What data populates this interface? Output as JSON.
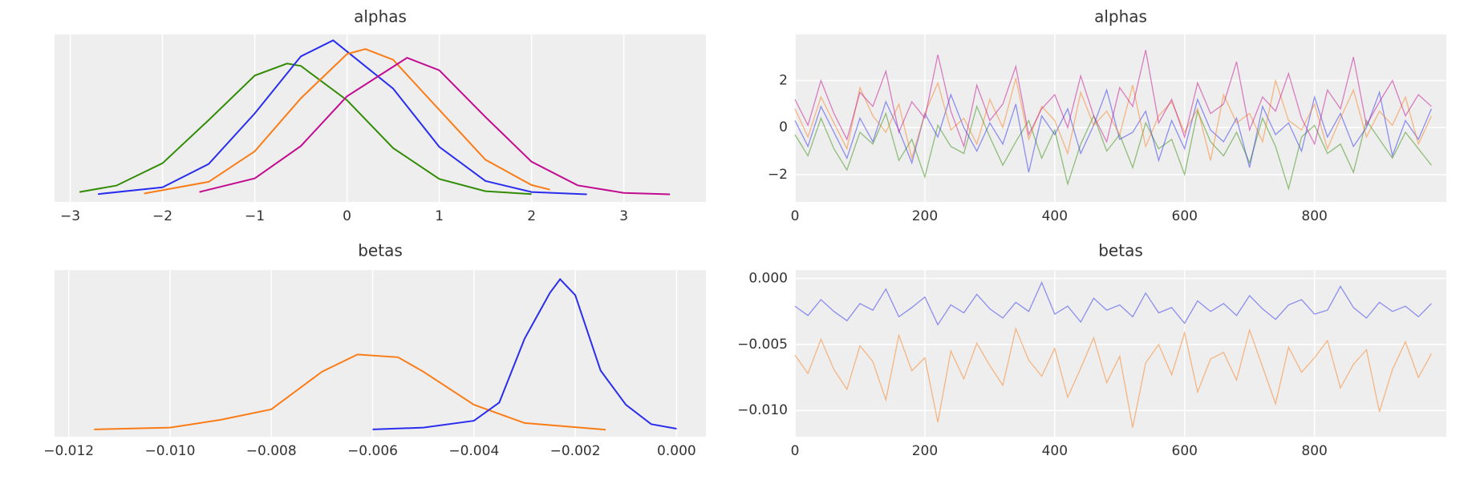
{
  "chart_data": [
    {
      "type": "kde",
      "title": "alphas",
      "grid": true,
      "xlim": [
        -3.17,
        3.89
      ],
      "ylim": [
        -0.025,
        0.55
      ],
      "xticks": [
        {
          "value": -3,
          "label": "−3"
        },
        {
          "value": -2,
          "label": "−2"
        },
        {
          "value": -1,
          "label": "−1"
        },
        0,
        1,
        2,
        3
      ],
      "series": [
        {
          "color": "#328c06",
          "x": [
            -2.9,
            -2.5,
            -2,
            -1.5,
            -1,
            -0.65,
            -0.5,
            0,
            0.5,
            1,
            1.5,
            2
          ],
          "values": [
            0.009,
            0.031,
            0.108,
            0.256,
            0.409,
            0.45,
            0.442,
            0.324,
            0.16,
            0.054,
            0.012,
            0.002
          ]
        },
        {
          "color": "#2a2eec",
          "x": [
            -2.7,
            -2,
            -1.5,
            -1,
            -0.5,
            -0.15,
            0.5,
            1,
            1.5,
            2,
            2.6
          ],
          "values": [
            0.002,
            0.025,
            0.105,
            0.279,
            0.475,
            0.53,
            0.364,
            0.164,
            0.047,
            0.009,
            0.001
          ]
        },
        {
          "color": "#fa7c17",
          "x": [
            -2.2,
            -1.5,
            -1,
            -0.5,
            0,
            0.2,
            0.5,
            1,
            1.5,
            2,
            2.2
          ],
          "values": [
            0.004,
            0.044,
            0.149,
            0.331,
            0.483,
            0.5,
            0.463,
            0.291,
            0.12,
            0.033,
            0.017
          ]
        },
        {
          "color": "#c10c90",
          "x": [
            -1.6,
            -1,
            -0.5,
            0,
            0.65,
            1,
            1.5,
            2,
            2.5,
            3,
            3.5
          ],
          "values": [
            0.009,
            0.056,
            0.167,
            0.338,
            0.47,
            0.427,
            0.267,
            0.113,
            0.032,
            0.006,
            0.001
          ]
        }
      ]
    },
    {
      "type": "trace",
      "title": "alphas",
      "grid": true,
      "xlim": [
        0,
        1003
      ],
      "ylim": [
        -3.16,
        3.96
      ],
      "xticks": [
        0,
        200,
        400,
        600,
        800
      ],
      "yticks": [
        {
          "value": -2,
          "label": "−2"
        },
        0,
        2
      ],
      "x": [
        0,
        20,
        40,
        60,
        80,
        100,
        120,
        140,
        160,
        180,
        200,
        220,
        240,
        260,
        280,
        300,
        320,
        340,
        360,
        380,
        400,
        420,
        440,
        460,
        480,
        500,
        520,
        540,
        560,
        580,
        600,
        620,
        640,
        660,
        680,
        700,
        720,
        740,
        760,
        780,
        800,
        820,
        840,
        860,
        880,
        900,
        920,
        940,
        960,
        980
      ],
      "series": [
        {
          "color": "#328c06",
          "values": [
            -0.3,
            -1.2,
            0.4,
            -0.9,
            -1.8,
            -0.2,
            -0.7,
            0.6,
            -1.4,
            -0.5,
            -2.1,
            0.1,
            -0.8,
            -1.1,
            0.9,
            -0.4,
            -1.6,
            -0.6,
            0.3,
            -1.3,
            -0.1,
            -2.4,
            -0.7,
            0.5,
            -1.0,
            -0.3,
            -1.7,
            0.2,
            -0.9,
            -0.5,
            -2.0,
            0.7,
            -0.6,
            -1.2,
            -0.2,
            -1.5,
            0.4,
            -0.8,
            -2.6,
            -0.4,
            0.1,
            -1.1,
            -0.7,
            -1.9,
            0.3,
            -0.5,
            -1.3,
            -0.2,
            -0.9,
            -1.6
          ]
        },
        {
          "color": "#2a2eec",
          "values": [
            0.3,
            -0.8,
            0.9,
            -0.2,
            -1.3,
            0.4,
            -0.6,
            1.1,
            -0.1,
            -1.5,
            0.6,
            -0.4,
            1.4,
            0.0,
            -1.0,
            0.2,
            -0.7,
            1.0,
            -1.9,
            0.5,
            -0.3,
            0.8,
            -1.1,
            0.1,
            1.6,
            -0.5,
            -0.2,
            0.7,
            -1.4,
            0.3,
            -0.9,
            1.2,
            -0.1,
            -0.6,
            0.4,
            -1.7,
            0.9,
            -0.3,
            0.2,
            -1.0,
            1.3,
            -0.4,
            0.6,
            -0.8,
            0.0,
            1.5,
            -1.2,
            0.3,
            -0.5,
            0.8
          ]
        },
        {
          "color": "#fa7c17",
          "values": [
            0.8,
            -0.4,
            1.3,
            0.2,
            -0.9,
            1.7,
            0.5,
            -0.2,
            1.0,
            -1.3,
            0.6,
            1.9,
            -0.1,
            0.4,
            -0.7,
            1.2,
            0.0,
            2.1,
            -0.5,
            0.9,
            0.3,
            -1.1,
            1.5,
            0.1,
            0.7,
            -0.3,
            1.8,
            -0.8,
            0.5,
            1.1,
            -0.2,
            0.8,
            -1.4,
            1.4,
            0.2,
            0.6,
            -0.6,
            2.0,
            0.3,
            -0.1,
            1.0,
            -0.9,
            0.4,
            1.6,
            -0.4,
            0.7,
            0.1,
            1.3,
            -0.7,
            0.5
          ]
        },
        {
          "color": "#c10c90",
          "values": [
            1.2,
            0.1,
            2.0,
            0.6,
            -0.5,
            1.5,
            0.9,
            2.4,
            -0.2,
            1.1,
            0.4,
            3.1,
            0.7,
            -0.8,
            1.8,
            0.3,
            1.0,
            2.6,
            -0.3,
            0.8,
            1.4,
            0.0,
            2.2,
            0.5,
            -0.6,
            1.7,
            0.9,
            3.3,
            0.2,
            1.2,
            -0.4,
            1.9,
            0.6,
            1.0,
            2.8,
            -0.1,
            1.3,
            0.7,
            2.3,
            0.4,
            -0.7,
            1.6,
            0.8,
            3.0,
            0.1,
            1.1,
            2.0,
            0.5,
            1.4,
            0.9
          ]
        }
      ]
    },
    {
      "type": "kde",
      "title": "betas",
      "grid": true,
      "xlim": [
        -0.01228,
        0.00058
      ],
      "ylim": [
        -30,
        700
      ],
      "xticks": [
        {
          "value": -0.012,
          "label": "−0.012"
        },
        {
          "value": -0.01,
          "label": "−0.010"
        },
        {
          "value": -0.008,
          "label": "−0.008"
        },
        {
          "value": -0.006,
          "label": "−0.006"
        },
        {
          "value": -0.004,
          "label": "−0.004"
        },
        {
          "value": -0.002,
          "label": "−0.002"
        },
        {
          "value": 0,
          "label": "0.000"
        }
      ],
      "series": [
        {
          "color": "#fa7c17",
          "x": [
            -0.0115,
            -0.01,
            -0.009,
            -0.008,
            -0.007,
            -0.0063,
            -0.0055,
            -0.005,
            -0.004,
            -0.003,
            -0.0014
          ],
          "values": [
            2,
            10,
            44,
            90,
            255,
            330,
            318,
            255,
            110,
            30,
            1
          ]
        },
        {
          "color": "#2a2eec",
          "x": [
            -0.006,
            -0.005,
            -0.004,
            -0.0035,
            -0.003,
            -0.0025,
            -0.0023,
            -0.002,
            -0.0015,
            -0.001,
            -0.0005,
            0
          ],
          "values": [
            2,
            10,
            40,
            120,
            400,
            600,
            660,
            590,
            260,
            110,
            25,
            5
          ]
        }
      ]
    },
    {
      "type": "trace",
      "title": "betas",
      "grid": true,
      "xlim": [
        0,
        1003
      ],
      "ylim": [
        -0.01199,
        0.00064
      ],
      "xticks": [
        0,
        200,
        400,
        600,
        800
      ],
      "yticks": [
        {
          "value": -0.01,
          "label": "−0.010"
        },
        {
          "value": -0.005,
          "label": "−0.005"
        },
        {
          "value": 0,
          "label": "0.000"
        }
      ],
      "x": [
        0,
        20,
        40,
        60,
        80,
        100,
        120,
        140,
        160,
        180,
        200,
        220,
        240,
        260,
        280,
        300,
        320,
        340,
        360,
        380,
        400,
        420,
        440,
        460,
        480,
        500,
        520,
        540,
        560,
        580,
        600,
        620,
        640,
        660,
        680,
        700,
        720,
        740,
        760,
        780,
        800,
        820,
        840,
        860,
        880,
        900,
        920,
        940,
        960,
        980
      ],
      "series": [
        {
          "color": "#2a2eec",
          "values": [
            -0.0021,
            -0.0028,
            -0.0016,
            -0.0025,
            -0.0032,
            -0.0019,
            -0.0024,
            -0.0008,
            -0.0029,
            -0.0022,
            -0.0014,
            -0.0035,
            -0.002,
            -0.0026,
            -0.0012,
            -0.0023,
            -0.003,
            -0.0018,
            -0.0025,
            -0.0003,
            -0.0027,
            -0.0021,
            -0.0033,
            -0.0015,
            -0.0024,
            -0.002,
            -0.0029,
            -0.0011,
            -0.0026,
            -0.0022,
            -0.0034,
            -0.0017,
            -0.0025,
            -0.0019,
            -0.0028,
            -0.0013,
            -0.0023,
            -0.0031,
            -0.002,
            -0.0016,
            -0.0027,
            -0.0024,
            -0.0006,
            -0.0022,
            -0.003,
            -0.0018,
            -0.0025,
            -0.0021,
            -0.0029,
            -0.0019
          ]
        },
        {
          "color": "#fa7c17",
          "values": [
            -0.0058,
            -0.0072,
            -0.0046,
            -0.0069,
            -0.0084,
            -0.0051,
            -0.0063,
            -0.0092,
            -0.0043,
            -0.007,
            -0.006,
            -0.0109,
            -0.0055,
            -0.0076,
            -0.0049,
            -0.0066,
            -0.0081,
            -0.0038,
            -0.0062,
            -0.0074,
            -0.0053,
            -0.009,
            -0.0068,
            -0.0045,
            -0.0079,
            -0.0059,
            -0.0113,
            -0.0064,
            -0.005,
            -0.0073,
            -0.0041,
            -0.0086,
            -0.0061,
            -0.0056,
            -0.0077,
            -0.0039,
            -0.0067,
            -0.0095,
            -0.0052,
            -0.0071,
            -0.006,
            -0.0047,
            -0.0083,
            -0.0065,
            -0.0054,
            -0.0101,
            -0.0069,
            -0.0048,
            -0.0075,
            -0.0057
          ]
        }
      ]
    }
  ]
}
